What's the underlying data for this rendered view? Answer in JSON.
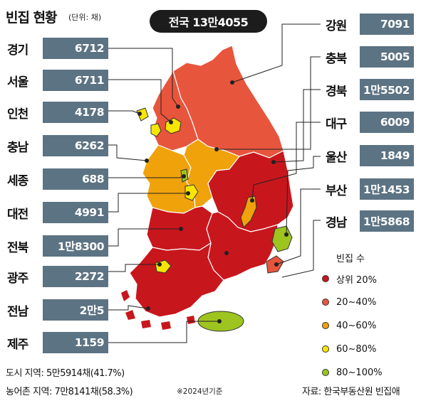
{
  "header": {
    "title": "빈집 현황",
    "subtitle": "(단위: 채)",
    "total": "전국 13만4055"
  },
  "left_regions": [
    {
      "name": "경기",
      "value": "6712"
    },
    {
      "name": "서울",
      "value": "6711"
    },
    {
      "name": "인천",
      "value": "4178"
    },
    {
      "name": "충남",
      "value": "6262"
    },
    {
      "name": "세종",
      "value": "688"
    },
    {
      "name": "대전",
      "value": "4991"
    },
    {
      "name": "전북",
      "value": "1만8300"
    },
    {
      "name": "광주",
      "value": "2272"
    },
    {
      "name": "전남",
      "value": "2만5"
    },
    {
      "name": "제주",
      "value": "1159"
    }
  ],
  "right_regions": [
    {
      "name": "강원",
      "value": "7091"
    },
    {
      "name": "충북",
      "value": "5005"
    },
    {
      "name": "경북",
      "value": "1만5502"
    },
    {
      "name": "대구",
      "value": "6009"
    },
    {
      "name": "울산",
      "value": "1849"
    },
    {
      "name": "부산",
      "value": "1만1453"
    },
    {
      "name": "경남",
      "value": "1만5868"
    }
  ],
  "legend": {
    "title": "빈집 수",
    "items": [
      {
        "label": "상위 20%",
        "color": "#c8161d"
      },
      {
        "label": "20~40%",
        "color": "#e8553d"
      },
      {
        "label": "40~60%",
        "color": "#f0a20b"
      },
      {
        "label": "60~80%",
        "color": "#f6e600"
      },
      {
        "label": "80~100%",
        "color": "#9dc41f"
      }
    ]
  },
  "footer": {
    "urban": "도시 지역: 5만5914채(41.7%)",
    "rural": "농어촌 지역: 7만8141채(58.3%)",
    "note": "※2024년기준",
    "source": "자료: 한국부동산원 빈집애"
  },
  "colors": {
    "top20": "#c8161d",
    "p20_40": "#e8553d",
    "p40_60": "#f0a20b",
    "p60_80": "#f6e600",
    "p80_100": "#9dc41f",
    "bar": "#5c7383"
  }
}
